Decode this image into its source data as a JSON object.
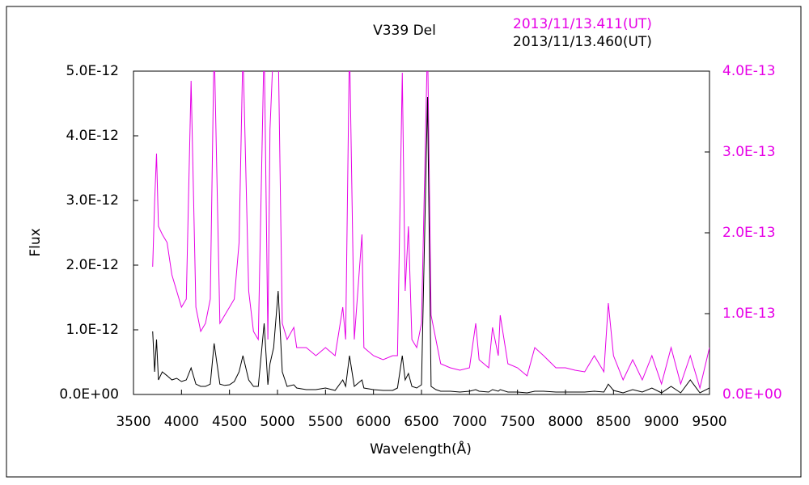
{
  "chart_data": {
    "type": "line",
    "title": "V339 Del",
    "x_label": "Wavelength(Å)",
    "y_label": "Flux",
    "x": [
      3700,
      3720,
      3740,
      3760,
      3800,
      3850,
      3900,
      3950,
      4000,
      4050,
      4100,
      4150,
      4200,
      4250,
      4300,
      4340,
      4400,
      4450,
      4500,
      4550,
      4600,
      4640,
      4700,
      4750,
      4800,
      4861,
      4900,
      4922,
      4960,
      5007,
      5050,
      5100,
      5170,
      5200,
      5300,
      5400,
      5500,
      5600,
      5680,
      5710,
      5750,
      5800,
      5880,
      5900,
      6000,
      6100,
      6200,
      6250,
      6300,
      6330,
      6364,
      6400,
      6450,
      6500,
      6563,
      6600,
      6650,
      6700,
      6800,
      6900,
      7000,
      7065,
      7100,
      7200,
      7240,
      7300,
      7320,
      7400,
      7500,
      7600,
      7680,
      7772,
      7900,
      8000,
      8100,
      8200,
      8300,
      8400,
      8446,
      8500,
      8600,
      8700,
      8800,
      8900,
      9000,
      9100,
      9200,
      9300,
      9400,
      9500
    ],
    "series": [
      {
        "name": "2013/11/13.411(UT)",
        "color": "#e600e6",
        "axis": "y2",
        "values": [
          1.58e-13,
          2.38e-13,
          2.98e-13,
          2.08e-13,
          1.98e-13,
          1.88e-13,
          1.48e-13,
          1.28e-13,
          1.08e-13,
          1.18e-13,
          3.88e-13,
          1.08e-13,
          7.8e-14,
          8.8e-14,
          1.18e-13,
          4.38e-13,
          8.8e-14,
          9.8e-14,
          1.08e-13,
          1.18e-13,
          1.88e-13,
          4.28e-13,
          1.28e-13,
          7.8e-14,
          6.8e-14,
          4.38e-13,
          6.8e-14,
          3.28e-13,
          4.38e-13,
          4.38e-13,
          8.8e-14,
          6.8e-14,
          8.3e-14,
          5.8e-14,
          5.8e-14,
          4.8e-14,
          5.8e-14,
          4.8e-14,
          1.08e-13,
          6.8e-14,
          4.38e-13,
          6.8e-14,
          1.98e-13,
          5.8e-14,
          4.8e-14,
          4.3e-14,
          4.8e-14,
          4.8e-14,
          3.98e-13,
          1.28e-13,
          2.08e-13,
          6.8e-14,
          5.8e-14,
          8.8e-14,
          4.38e-13,
          9.8e-14,
          6.8e-14,
          3.8e-14,
          3.3e-14,
          3e-14,
          3.3e-14,
          8.8e-14,
          4.3e-14,
          3.3e-14,
          8.3e-14,
          4.8e-14,
          9.8e-14,
          3.8e-14,
          3.3e-14,
          2.3e-14,
          5.8e-14,
          4.8e-14,
          3.3e-14,
          3.3e-14,
          3e-14,
          2.8e-14,
          4.8e-14,
          2.8e-14,
          1.13e-13,
          4.8e-14,
          1.8e-14,
          4.3e-14,
          1.8e-14,
          4.8e-14,
          1.3e-14,
          5.8e-14,
          1.3e-14,
          4.8e-14,
          8e-15,
          5.8e-14
        ]
      },
      {
        "name": "2013/11/13.460(UT)",
        "color": "#000000",
        "axis": "y",
        "values": [
          9.75e-13,
          3.5e-13,
          8.5e-13,
          2.25e-13,
          3.5e-13,
          2.9e-13,
          2.25e-13,
          2.5e-13,
          2e-13,
          2.25e-13,
          4.1e-13,
          1.6e-13,
          1.25e-13,
          1.25e-13,
          1.6e-13,
          7.9e-13,
          1.6e-13,
          1.4e-13,
          1.5e-13,
          2e-13,
          3.5e-13,
          6e-13,
          2.25e-13,
          1.25e-13,
          1.25e-13,
          1.1e-12,
          1.5e-13,
          4.75e-13,
          7.25e-13,
          1.6e-12,
          3.5e-13,
          1.25e-13,
          1.5e-13,
          1e-13,
          7.5e-14,
          7.5e-14,
          1e-13,
          6.25e-14,
          2.25e-13,
          1.25e-13,
          6e-13,
          1.25e-13,
          2.25e-13,
          1e-13,
          7.5e-14,
          6.25e-14,
          6.25e-14,
          1e-13,
          6e-13,
          2.25e-13,
          3.25e-13,
          1.25e-13,
          1e-13,
          1.5e-13,
          4.6e-12,
          1.25e-13,
          7.5e-14,
          5e-14,
          5e-14,
          3.75e-14,
          5e-14,
          7.5e-14,
          5e-14,
          3.75e-14,
          7.5e-14,
          5e-14,
          7.5e-14,
          3.75e-14,
          3.75e-14,
          2.5e-14,
          5e-14,
          5e-14,
          3.75e-14,
          3.75e-14,
          3.75e-14,
          3.75e-14,
          5e-14,
          3.75e-14,
          1.6e-13,
          6.25e-14,
          2.5e-14,
          7.5e-14,
          3.75e-14,
          1e-13,
          2.5e-14,
          1.25e-13,
          2.5e-14,
          2.25e-13,
          2.5e-14,
          1e-13
        ]
      }
    ],
    "xlim": [
      3500,
      9500
    ],
    "xticks": [
      3500,
      4000,
      4500,
      5000,
      5500,
      6000,
      6500,
      7000,
      7500,
      8000,
      8500,
      9000,
      9500
    ],
    "ylim": [
      0,
      5e-12
    ],
    "yticks": [
      {
        "value": 0,
        "label": "0.0E+00"
      },
      {
        "value": 1e-12,
        "label": "1.0E-12"
      },
      {
        "value": 2e-12,
        "label": "2.0E-12"
      },
      {
        "value": 3e-12,
        "label": "3.0E-12"
      },
      {
        "value": 4e-12,
        "label": "4.0E-12"
      },
      {
        "value": 5e-12,
        "label": "5.0E-12"
      }
    ],
    "y2lim": [
      0,
      4e-13
    ],
    "y2ticks": [
      {
        "value": 0,
        "label": "0.0E+00"
      },
      {
        "value": 1e-13,
        "label": "1.0E-13"
      },
      {
        "value": 2e-13,
        "label": "2.0E-13"
      },
      {
        "value": 3e-13,
        "label": "3.0E-13"
      },
      {
        "value": 4e-13,
        "label": "4.0E-13"
      }
    ],
    "grid": false
  }
}
